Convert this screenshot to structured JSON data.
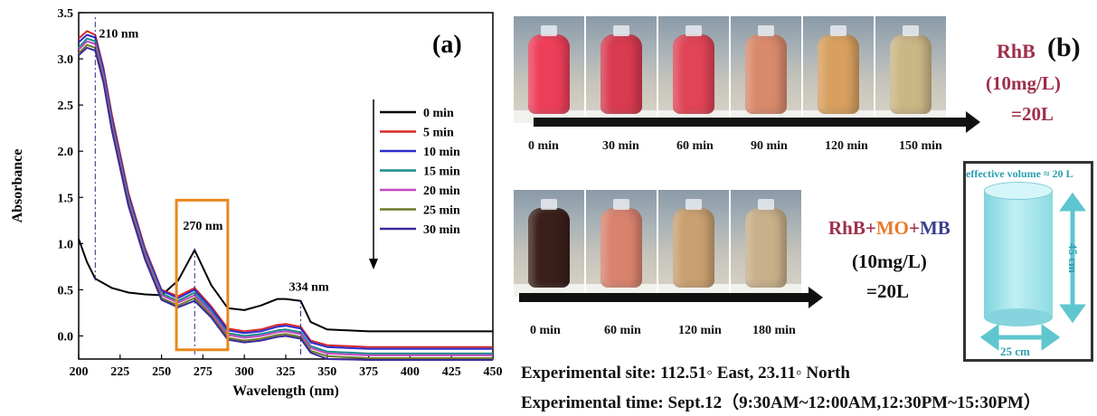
{
  "chart_data": {
    "type": "line",
    "panel_label": "(a)",
    "xlabel": "Wavelength (nm)",
    "ylabel": "Absorbance",
    "xlim": [
      200,
      450
    ],
    "ylim": [
      -0.25,
      3.5
    ],
    "x_ticks": [
      "200",
      "225",
      "250",
      "275",
      "300",
      "325",
      "350",
      "375",
      "400",
      "425",
      "450"
    ],
    "y_ticks": [
      "0.0",
      "0.5",
      "1.0",
      "1.5",
      "2.0",
      "2.5",
      "3.0",
      "3.5"
    ],
    "annotations": [
      "210 nm",
      "270 nm",
      "334 nm"
    ],
    "x": [
      200,
      205,
      210,
      215,
      220,
      230,
      240,
      250,
      260,
      270,
      280,
      290,
      300,
      310,
      320,
      325,
      334,
      340,
      350,
      375,
      400,
      450
    ],
    "series": [
      {
        "name": "0 min",
        "color": "#000000",
        "values": [
          1.05,
          0.8,
          0.62,
          0.57,
          0.52,
          0.47,
          0.45,
          0.44,
          0.6,
          0.93,
          0.55,
          0.3,
          0.28,
          0.33,
          0.4,
          0.4,
          0.38,
          0.15,
          0.07,
          0.05,
          0.05,
          0.05
        ]
      },
      {
        "name": "5 min",
        "color": "#d62828",
        "values": [
          3.22,
          3.3,
          3.26,
          2.9,
          2.4,
          1.55,
          0.95,
          0.5,
          0.43,
          0.52,
          0.32,
          0.08,
          0.05,
          0.07,
          0.12,
          0.13,
          0.1,
          -0.05,
          -0.1,
          -0.12,
          -0.12,
          -0.12
        ]
      },
      {
        "name": "10 min",
        "color": "#2b2bd0",
        "values": [
          3.18,
          3.26,
          3.23,
          2.87,
          2.36,
          1.52,
          0.93,
          0.49,
          0.41,
          0.5,
          0.3,
          0.06,
          0.03,
          0.05,
          0.1,
          0.11,
          0.08,
          -0.07,
          -0.12,
          -0.14,
          -0.14,
          -0.14
        ]
      },
      {
        "name": "15 min",
        "color": "#1a8a8a",
        "values": [
          3.12,
          3.22,
          3.19,
          2.83,
          2.32,
          1.49,
          0.9,
          0.46,
          0.38,
          0.47,
          0.27,
          0.03,
          0.0,
          0.02,
          0.06,
          0.07,
          0.04,
          -0.11,
          -0.17,
          -0.19,
          -0.19,
          -0.19
        ]
      },
      {
        "name": "20 min",
        "color": "#c04ac0",
        "values": [
          3.1,
          3.19,
          3.16,
          2.8,
          2.29,
          1.46,
          0.88,
          0.44,
          0.36,
          0.44,
          0.25,
          0.01,
          -0.02,
          0.0,
          0.04,
          0.05,
          0.02,
          -0.13,
          -0.19,
          -0.21,
          -0.21,
          -0.21
        ]
      },
      {
        "name": "25 min",
        "color": "#6e7a2a",
        "values": [
          3.06,
          3.15,
          3.12,
          2.76,
          2.25,
          1.43,
          0.85,
          0.41,
          0.33,
          0.41,
          0.22,
          -0.02,
          -0.05,
          -0.03,
          0.01,
          0.02,
          -0.01,
          -0.16,
          -0.22,
          -0.24,
          -0.24,
          -0.24
        ]
      },
      {
        "name": "30 min",
        "color": "#3a2a9a",
        "values": [
          3.04,
          3.12,
          3.09,
          2.74,
          2.23,
          1.41,
          0.83,
          0.39,
          0.31,
          0.38,
          0.2,
          -0.04,
          -0.07,
          -0.05,
          -0.01,
          0.0,
          -0.03,
          -0.18,
          -0.25,
          -0.26,
          -0.26,
          -0.26
        ]
      }
    ]
  },
  "panel_b": {
    "label": "(b)",
    "strip1": {
      "times": [
        "0 min",
        "30 min",
        "60 min",
        "90 min",
        "120 min",
        "150 min"
      ],
      "colors": [
        "#ee3f5a",
        "#d83a4f",
        "#e04456",
        "#d98a6c",
        "#d8a05f",
        "#cbb685"
      ]
    },
    "strip1_dye": "RhB",
    "strip1_conc": "(10mg/L)",
    "strip1_vol": "=20L",
    "strip2": {
      "times": [
        "0 min",
        "60 min",
        "120 min",
        "180 min"
      ],
      "colors": [
        "#3a1f1a",
        "#d9836e",
        "#c9a070",
        "#c8b08a"
      ]
    },
    "strip2_dye_1": "RhB",
    "strip2_plus_1": "+",
    "strip2_dye_2": "MO",
    "strip2_plus_2": "+",
    "strip2_dye_3": "MB",
    "strip2_conc": "(10mg/L)",
    "strip2_vol": "=20L",
    "reactor": {
      "volume": "effective volume ≈ 20 L",
      "height": "45 cm",
      "diameter": "25 cm"
    },
    "site_line": "Experimental site:  112.51◦  East, 23.11◦  North",
    "time_line": "Experimental time:  Sept.12（9:30AM~12:00AM,12:30PM~15:30PM）"
  }
}
